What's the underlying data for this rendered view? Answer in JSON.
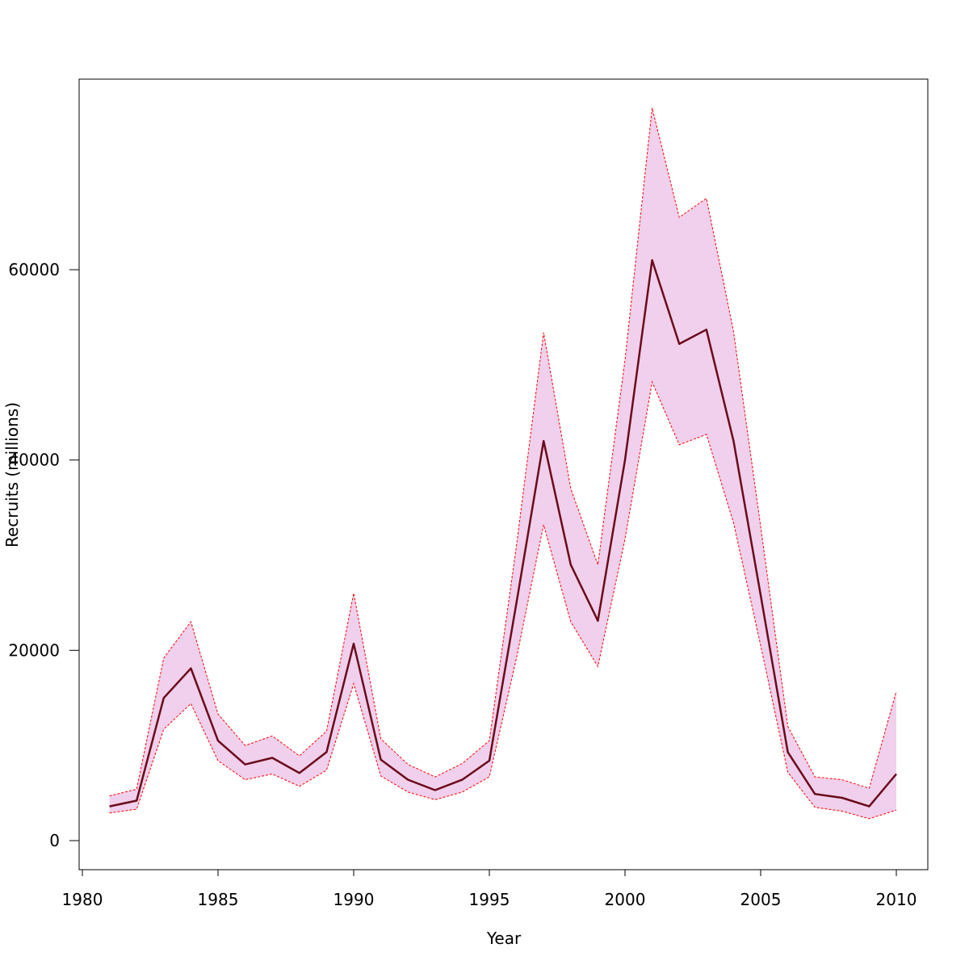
{
  "chart_data": {
    "type": "area",
    "title": "",
    "xlabel": "Year",
    "ylabel": "Recruits (millions)",
    "xlim": [
      1980,
      2011
    ],
    "ylim": [
      -3000,
      80000
    ],
    "x_ticks": [
      1980,
      1985,
      1990,
      1995,
      2000,
      2005,
      2010
    ],
    "y_ticks": [
      0,
      20000,
      40000,
      60000
    ],
    "x_tick_labels": [
      "1980",
      "1985",
      "1990",
      "1995",
      "2000",
      "2005",
      "2010"
    ],
    "y_tick_labels": [
      "0",
      "20000",
      "40000",
      "60000"
    ],
    "grid": false,
    "legend": "none",
    "x": [
      1981,
      1982,
      1983,
      1984,
      1985,
      1986,
      1987,
      1988,
      1989,
      1990,
      1991,
      1992,
      1993,
      1994,
      1995,
      1996,
      1997,
      1998,
      1999,
      2000,
      2001,
      2002,
      2003,
      2004,
      2005,
      2006,
      2007,
      2008,
      2009,
      2010
    ],
    "series": [
      {
        "role": "estimate",
        "values": [
          3600,
          4200,
          15000,
          18100,
          10500,
          8000,
          8700,
          7100,
          9300,
          20700,
          8500,
          6400,
          5300,
          6400,
          8400,
          25000,
          42000,
          29000,
          23100,
          40000,
          61000,
          52200,
          53700,
          42000,
          25800,
          9300,
          4900,
          4500,
          3600,
          7000
        ]
      },
      {
        "role": "upper",
        "values": [
          4700,
          5400,
          19200,
          23000,
          13300,
          10000,
          11000,
          8900,
          11500,
          26000,
          10700,
          8000,
          6700,
          8100,
          10500,
          31000,
          53400,
          37000,
          29000,
          50500,
          77000,
          65500,
          67500,
          53500,
          33000,
          12000,
          6700,
          6400,
          5500,
          15700
        ]
      },
      {
        "role": "lower",
        "values": [
          2900,
          3300,
          11700,
          14400,
          8400,
          6400,
          7000,
          5700,
          7400,
          16500,
          6800,
          5100,
          4300,
          5100,
          6700,
          19200,
          33200,
          23000,
          18300,
          31700,
          48200,
          41600,
          42700,
          33400,
          20500,
          7200,
          3500,
          3100,
          2300,
          3200
        ]
      }
    ],
    "colors": {
      "band_fill": "#f0d0ec",
      "band_border": "#ff0000",
      "line": "#6b0a1a",
      "axis": "#000000"
    }
  }
}
